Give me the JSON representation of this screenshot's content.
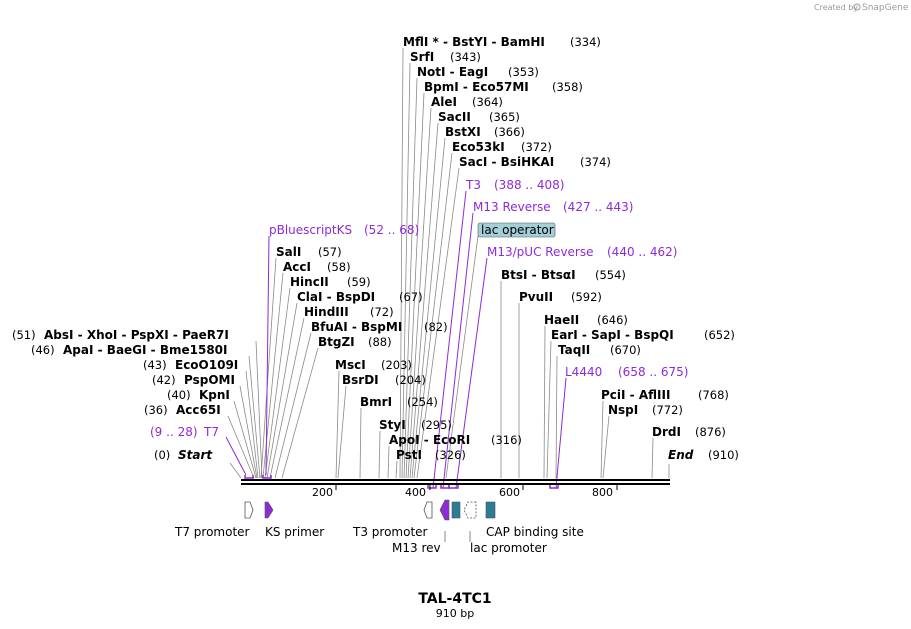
{
  "credit": {
    "prefix": "Created by",
    "brand": "SnapGene"
  },
  "title": "TAL-4TC1",
  "subtitle": "910 bp",
  "ends": {
    "start_label": "Start",
    "start_pos": "(0)",
    "end_label": "End",
    "end_pos": "(910)"
  },
  "ruler": [
    "200",
    "400",
    "600",
    "800"
  ],
  "enzymes": [
    {
      "names": [
        "MflI *",
        "BstYI",
        "BamHI"
      ],
      "pos": "(334)"
    },
    {
      "names": [
        "SrfI"
      ],
      "pos": "(343)"
    },
    {
      "names": [
        "NotI",
        "EagI"
      ],
      "pos": "(353)"
    },
    {
      "names": [
        "BpmI",
        "Eco57MI"
      ],
      "pos": "(358)"
    },
    {
      "names": [
        "AleI"
      ],
      "pos": "(364)"
    },
    {
      "names": [
        "SacII"
      ],
      "pos": "(365)"
    },
    {
      "names": [
        "BstXI"
      ],
      "pos": "(366)"
    },
    {
      "names": [
        "Eco53kI"
      ],
      "pos": "(372)"
    },
    {
      "names": [
        "SacI",
        "BsiHKAI"
      ],
      "pos": "(374)"
    },
    {
      "names": [
        "SalI"
      ],
      "pos": "(57)"
    },
    {
      "names": [
        "AccI"
      ],
      "pos": "(58)"
    },
    {
      "names": [
        "HincII"
      ],
      "pos": "(59)"
    },
    {
      "names": [
        "ClaI",
        "BspDI"
      ],
      "pos": "(67)"
    },
    {
      "names": [
        "HindIII"
      ],
      "pos": "(72)"
    },
    {
      "names": [
        "BfuAI",
        "BspMI"
      ],
      "pos": "(82)"
    },
    {
      "names": [
        "BtgZI"
      ],
      "pos": "(88)"
    },
    {
      "names": [
        "AbsI",
        "XhoI",
        "PspXI",
        "PaeR7I"
      ],
      "pos": "(51)"
    },
    {
      "names": [
        "ApaI",
        "BaeGI",
        "Bme1580I"
      ],
      "pos": "(46)"
    },
    {
      "names": [
        "EcoO109I"
      ],
      "pos": "(43)"
    },
    {
      "names": [
        "PspOMI"
      ],
      "pos": "(42)"
    },
    {
      "names": [
        "KpnI"
      ],
      "pos": "(40)"
    },
    {
      "names": [
        "Acc65I"
      ],
      "pos": "(36)"
    },
    {
      "names": [
        "MscI"
      ],
      "pos": "(203)"
    },
    {
      "names": [
        "BsrDI"
      ],
      "pos": "(204)"
    },
    {
      "names": [
        "BmrI"
      ],
      "pos": "(254)"
    },
    {
      "names": [
        "StyI"
      ],
      "pos": "(295)"
    },
    {
      "names": [
        "ApoI",
        "EcoRI"
      ],
      "pos": "(316)"
    },
    {
      "names": [
        "PstI"
      ],
      "pos": "(326)"
    },
    {
      "names": [
        "BtsI",
        "BtsαI"
      ],
      "pos": "(554)"
    },
    {
      "names": [
        "PvuII"
      ],
      "pos": "(592)"
    },
    {
      "names": [
        "HaeII"
      ],
      "pos": "(646)"
    },
    {
      "names": [
        "EarI",
        "SapI",
        "BspQI"
      ],
      "pos": "(652)"
    },
    {
      "names": [
        "TaqII"
      ],
      "pos": "(670)"
    },
    {
      "names": [
        "PciI",
        "AflIII"
      ],
      "pos": "(768)"
    },
    {
      "names": [
        "NspI"
      ],
      "pos": "(772)"
    },
    {
      "names": [
        "DrdI"
      ],
      "pos": "(876)"
    }
  ],
  "features": [
    {
      "name": "T3",
      "range": "(388 .. 408)"
    },
    {
      "name": "M13 Reverse",
      "range": "(427 .. 443)"
    },
    {
      "name": "M13/pUC Reverse",
      "range": "(440 .. 462)"
    },
    {
      "name": "pBluescriptKS",
      "range": "(52 .. 68)"
    },
    {
      "name": "L4440",
      "range": "(658 .. 675)"
    },
    {
      "name": "T7",
      "range": "(9 .. 28)"
    }
  ],
  "lac_operator": "lac operator",
  "feature_labels": {
    "t7_promoter": "T7 promoter",
    "ks_primer": "KS primer",
    "t3_promoter": "T3 promoter",
    "m13_rev": "M13 rev",
    "lac_promoter": "lac promoter",
    "cap_site": "CAP binding site"
  },
  "colors": {
    "feature": "#8e2bd6",
    "lac_operator": "#a3cfd6",
    "cap": "#2a7d94",
    "credit": "#9a9a9a"
  }
}
